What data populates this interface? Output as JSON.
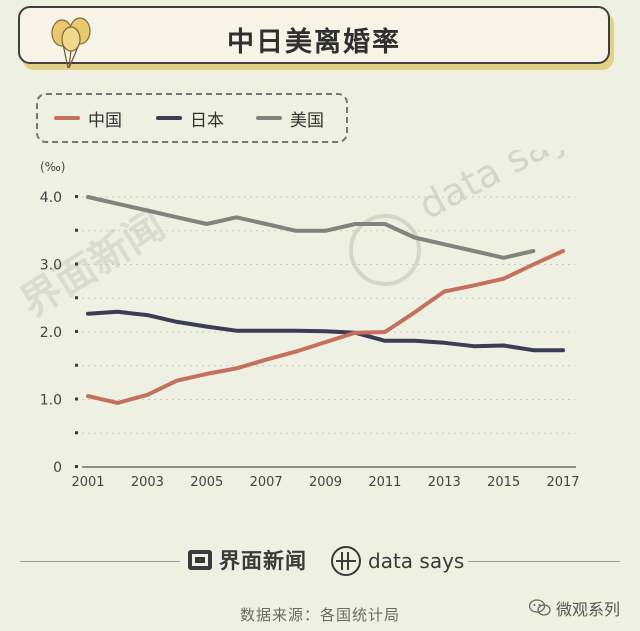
{
  "header": {
    "title": "中日美离婚率"
  },
  "legend": {
    "items": [
      {
        "label": "中国",
        "color": "#c4705f"
      },
      {
        "label": "日本",
        "color": "#3b3d55"
      },
      {
        "label": "美国",
        "color": "#7f857e"
      }
    ]
  },
  "chart_data": {
    "type": "line",
    "unit_label": "(‰)",
    "x": [
      2001,
      2002,
      2003,
      2004,
      2005,
      2006,
      2007,
      2008,
      2009,
      2010,
      2011,
      2012,
      2013,
      2014,
      2015,
      2016,
      2017
    ],
    "x_ticks": [
      "2001",
      "2003",
      "2005",
      "2007",
      "2009",
      "2011",
      "2013",
      "2015",
      "2017"
    ],
    "y_ticks": [
      "0",
      "1.0",
      "2.0",
      "3.0",
      "4.0"
    ],
    "ylim": [
      0,
      4.2
    ],
    "series": [
      {
        "name": "中国",
        "color": "#c4705f",
        "values": [
          1.05,
          0.95,
          1.07,
          1.28,
          1.38,
          1.46,
          1.59,
          1.71,
          1.85,
          1.99,
          2.0,
          2.29,
          2.6,
          2.69,
          2.79,
          3.0,
          3.2
        ]
      },
      {
        "name": "日本",
        "color": "#3b3d55",
        "values": [
          2.27,
          2.3,
          2.25,
          2.15,
          2.08,
          2.02,
          2.02,
          2.02,
          2.01,
          1.99,
          1.87,
          1.87,
          1.84,
          1.79,
          1.8,
          1.73,
          1.73
        ]
      },
      {
        "name": "美国",
        "color": "#7f857e",
        "values": [
          4.0,
          3.9,
          3.8,
          3.7,
          3.6,
          3.7,
          3.6,
          3.5,
          3.5,
          3.6,
          3.6,
          3.4,
          3.3,
          3.2,
          3.1,
          3.2,
          null
        ]
      }
    ]
  },
  "watermarks": {
    "jiemian": "界面新闻",
    "datasays": "data says"
  },
  "footer": {
    "brand1": "界面新闻",
    "brand2": "data says",
    "source": "数据来源：各国统计局",
    "wechat": "微观系列"
  }
}
